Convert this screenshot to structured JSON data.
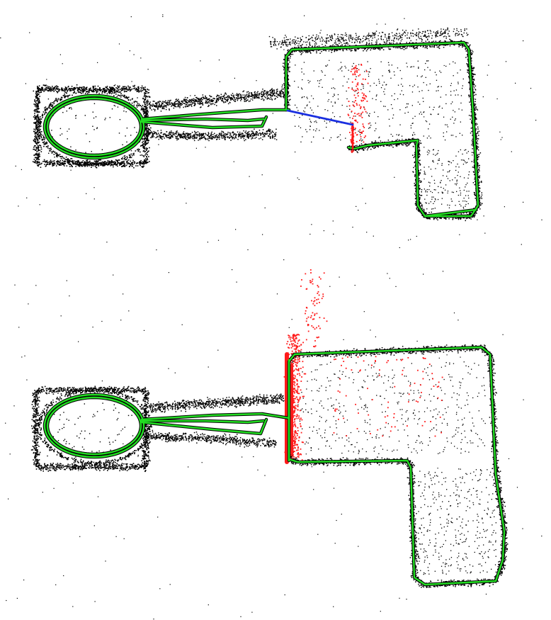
{
  "figure": {
    "panels": [
      {
        "id": "before-loop-closure",
        "has_link": true
      },
      {
        "id": "after-loop-closure",
        "has_link": false
      }
    ]
  },
  "colors": {
    "background": "#ffffff",
    "map_points": "#000000",
    "trajectory": "#22dd22",
    "trajectory_outline": "#000000",
    "highlight_points": "#ff1a1a",
    "loop_link": "#1a2fe0"
  }
}
